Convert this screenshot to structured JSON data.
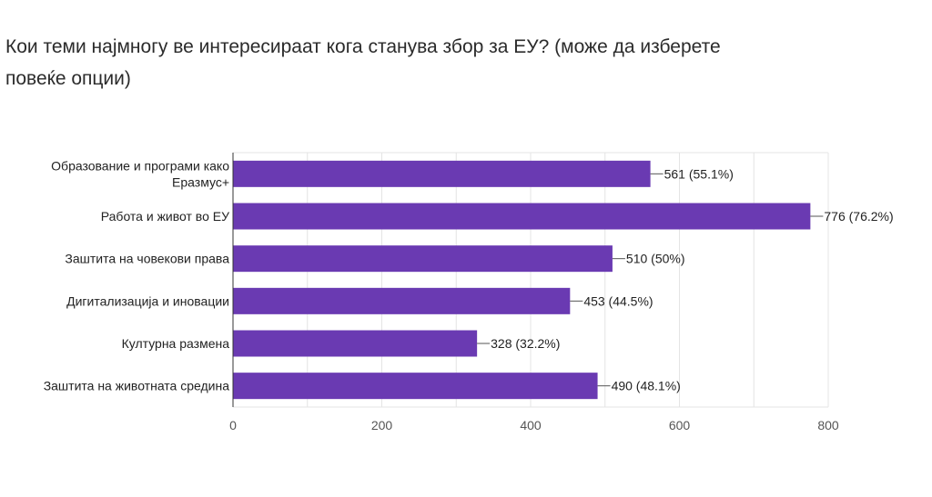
{
  "chart_data": {
    "type": "bar",
    "orientation": "horizontal",
    "title": "Кои теми најмногу ве интересираат кога станува збор за ЕУ?  (може да изберете повеќе опции)",
    "categories": [
      [
        "Образование и програми како",
        "Еразмус+"
      ],
      [
        "Работа и живот во ЕУ"
      ],
      [
        "Заштита на човекови права"
      ],
      [
        "Дигитализација и иновации"
      ],
      [
        "Културна размена"
      ],
      [
        "Заштита на животната средина"
      ]
    ],
    "values": [
      561,
      776,
      510,
      453,
      328,
      490
    ],
    "data_labels": [
      "561 (55.1%)",
      "776 (76.2%)",
      "510 (50%)",
      "453 (44.5%)",
      "328 (32.2%)",
      "490 (48.1%)"
    ],
    "xlim": [
      0,
      800
    ],
    "xticks": [
      "0",
      "200",
      "400",
      "600",
      "800"
    ],
    "xtick_values": [
      0,
      200,
      400,
      600,
      800
    ],
    "grid": true,
    "bar_color": "#6a3ab2"
  }
}
